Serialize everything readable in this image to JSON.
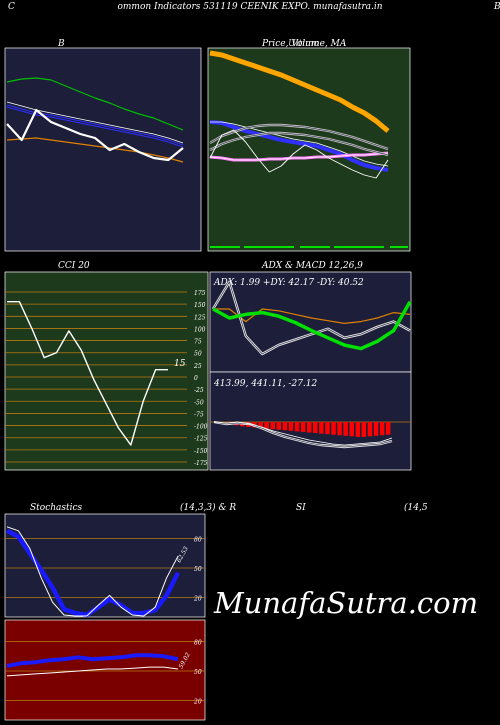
{
  "header": {
    "left_mark": "C",
    "title": "ommon  Indicators 531119 CEENIK EXPO. munafasutra.in",
    "right_mark": "B"
  },
  "watermark": "MunafaSutra.com",
  "colors": {
    "panel_navy": "#1c1e3a",
    "panel_green": "#1e3a1c",
    "panel_red": "#7a0000",
    "grid_orange": "#b87a10",
    "macd_red": "#ff0000",
    "adx_green": "#00e000",
    "stoch_blue": "#1a1aff"
  },
  "chart_data": [
    {
      "id": "bollinger",
      "type": "line",
      "title": "B",
      "series": [
        {
          "values": [
            82,
            79,
            78,
            80,
            86,
            92,
            98,
            103,
            109,
            114,
            118,
            124,
            130
          ]
        },
        {
          "values": [
            106,
            110,
            114,
            116,
            119,
            122,
            125,
            128,
            131,
            134,
            137,
            141,
            146
          ]
        },
        {
          "values": [
            102,
            106,
            110,
            113,
            116,
            119,
            122,
            125,
            128,
            131,
            134,
            138,
            143
          ]
        },
        {
          "values": [
            140,
            139,
            138,
            140,
            142,
            144,
            146,
            148,
            150,
            152,
            155,
            158,
            162
          ]
        },
        {
          "values": [
            124,
            140,
            110,
            122,
            128,
            134,
            138,
            150,
            144,
            152,
            158,
            160,
            148
          ]
        }
      ]
    },
    {
      "id": "price_ma",
      "type": "line",
      "title": "Price,  Volume,  MA",
      "title_overlay": "Ultimo",
      "series": [
        {
          "values": [
            8,
            10,
            14,
            18,
            22,
            26,
            30,
            35,
            40,
            45,
            50,
            55,
            62,
            68,
            76,
            86
          ]
        },
        {
          "values": [
            122,
            123,
            127,
            131,
            134,
            137,
            140,
            142,
            144,
            146,
            150,
            154,
            160,
            165,
            168,
            170
          ]
        },
        {
          "values": [
            122,
            122,
            124,
            127,
            130,
            133,
            136,
            139,
            141,
            143,
            147,
            151,
            156,
            161,
            164,
            166
          ]
        },
        {
          "values": [
            157,
            158,
            160,
            160,
            160,
            159,
            159,
            158,
            158,
            157,
            157,
            156,
            155,
            155,
            154,
            153
          ]
        },
        {
          "values": [
            143,
            136,
            132,
            128,
            126,
            125,
            125,
            126,
            127,
            129,
            131,
            134,
            137,
            141,
            145,
            149
          ]
        },
        {
          "values": [
            150,
            144,
            140,
            137,
            135,
            133,
            133,
            134,
            135,
            137,
            139,
            142,
            145,
            149,
            152,
            155
          ]
        },
        {
          "values": [
            158,
            135,
            130,
            142,
            158,
            172,
            166,
            154,
            145,
            150,
            158,
            164,
            170,
            175,
            178,
            160
          ]
        }
      ]
    },
    {
      "id": "cci",
      "type": "line",
      "title": "CCI 20",
      "yticks": [
        175,
        150,
        125,
        100,
        75,
        50,
        25,
        0,
        -25,
        -50,
        -75,
        -100,
        -125,
        -150,
        -175
      ],
      "ylim": [
        -175,
        175
      ],
      "last_label": "15",
      "series": [
        {
          "values": [
            155,
            155,
            100,
            40,
            50,
            95,
            55,
            -5,
            -55,
            -105,
            -140,
            -50,
            15,
            15
          ]
        }
      ]
    },
    {
      "id": "adx",
      "type": "line",
      "title": "ADX  & MACD 12,26,9",
      "readout": "ADX: 1.99 +DY: 42.17 -DY: 40.52",
      "series": [
        {
          "values": [
            70,
            60,
            64,
            66,
            62,
            55,
            46,
            38,
            30,
            26,
            34,
            46,
            78
          ]
        },
        {
          "values": [
            70,
            70,
            56,
            70,
            68,
            64,
            60,
            57,
            54,
            56,
            60,
            66,
            64
          ]
        },
        {
          "values": [
            70,
            100,
            40,
            20,
            30,
            36,
            42,
            48,
            38,
            42,
            50,
            56,
            46
          ]
        }
      ]
    },
    {
      "id": "macd",
      "type": "bar",
      "readout": "413.99,  441.11,  -27.12",
      "values": [
        -3,
        -6,
        -8,
        -9,
        -10,
        -11,
        -12,
        -13,
        -14,
        -15,
        -16,
        -17,
        -18,
        -19,
        -20,
        -21,
        -22,
        -23,
        -24,
        -25,
        -26,
        -27,
        -27,
        -26,
        -25,
        -24,
        -23
      ]
    },
    {
      "id": "stochastics",
      "type": "line",
      "title": "Stochastics",
      "params": "(14,3,3) & R",
      "yticks": [
        80,
        50,
        20
      ],
      "ylim": [
        0,
        100
      ],
      "last_label": "62.53",
      "series": [
        {
          "values": [
            88,
            82,
            65,
            48,
            30,
            8,
            4,
            2,
            10,
            18,
            12,
            4,
            4,
            7,
            22,
            45
          ]
        },
        {
          "values": [
            92,
            88,
            70,
            40,
            15,
            2,
            1,
            1,
            12,
            22,
            10,
            2,
            1,
            10,
            40,
            62
          ]
        }
      ]
    },
    {
      "id": "williams",
      "type": "line",
      "yticks": [
        80,
        50,
        20
      ],
      "ylim": [
        0,
        100
      ],
      "last_label": "59.02",
      "series": [
        {
          "values": [
            55,
            58,
            59,
            61,
            62,
            64,
            62,
            63,
            64,
            66,
            66,
            65,
            62
          ]
        },
        {
          "values": [
            45,
            46,
            47,
            48,
            49,
            50,
            51,
            52,
            52,
            53,
            54,
            54,
            52
          ]
        }
      ]
    },
    {
      "id": "rsi",
      "type": "line",
      "title": "SI",
      "params": "(14,5"
    }
  ]
}
